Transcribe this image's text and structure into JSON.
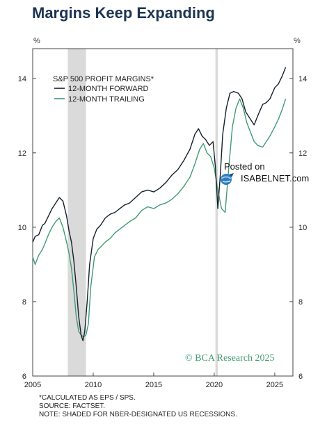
{
  "title": "Margins Keep Expanding",
  "colors": {
    "forward": "#14202c",
    "trailing": "#3f9b72",
    "recession": "#dadada",
    "axis": "#444444",
    "title": "#1c3550",
    "watermark": "#3f9b72"
  },
  "chart_data": {
    "type": "line",
    "title": "Margins Keep Expanding",
    "legend_title": "S&P 500 PROFIT MARGINS*",
    "legend_position": "top-left",
    "left_unit": "%",
    "right_unit": "%",
    "xlim": [
      2005,
      2026.5
    ],
    "ylim": [
      6,
      14.8
    ],
    "x_ticks": [
      2005,
      2010,
      2015,
      2020,
      2025
    ],
    "x_tick_labels": [
      "2005",
      "2010",
      "2015",
      "2020",
      "2025"
    ],
    "y_ticks": [
      6,
      8,
      10,
      12,
      14
    ],
    "y_tick_labels": [
      "6",
      "8",
      "10",
      "12",
      "14"
    ],
    "grid": false,
    "recession_shading": [
      [
        2007.9,
        2009.4
      ],
      [
        2020.1,
        2020.3
      ]
    ],
    "series": [
      {
        "name": "12-MONTH FORWARD",
        "x": [
          2005.0,
          2005.2,
          2005.5,
          2005.8,
          2006.0,
          2006.3,
          2006.6,
          2006.9,
          2007.2,
          2007.5,
          2007.8,
          2008.0,
          2008.2,
          2008.4,
          2008.6,
          2008.8,
          2009.0,
          2009.15,
          2009.3,
          2009.5,
          2009.7,
          2010.0,
          2010.3,
          2010.6,
          2011.0,
          2011.4,
          2011.8,
          2012.2,
          2012.6,
          2013.0,
          2013.5,
          2014.0,
          2014.5,
          2015.0,
          2015.5,
          2016.0,
          2016.5,
          2017.0,
          2017.5,
          2018.0,
          2018.4,
          2018.7,
          2019.0,
          2019.3,
          2019.6,
          2019.9,
          2020.1,
          2020.3,
          2020.5,
          2020.7,
          2021.0,
          2021.3,
          2021.6,
          2022.0,
          2022.3,
          2022.6,
          2023.0,
          2023.3,
          2023.6,
          2024.0,
          2024.3,
          2024.6,
          2025.0,
          2025.3,
          2025.6,
          2025.9
        ],
        "values": [
          9.6,
          9.75,
          9.8,
          10.05,
          10.1,
          10.3,
          10.5,
          10.65,
          10.8,
          10.7,
          10.3,
          9.9,
          9.6,
          9.1,
          8.4,
          7.6,
          7.1,
          6.95,
          7.2,
          8.0,
          9.0,
          9.7,
          9.95,
          10.05,
          10.25,
          10.35,
          10.4,
          10.5,
          10.6,
          10.65,
          10.8,
          10.95,
          11.0,
          10.95,
          11.05,
          11.2,
          11.4,
          11.55,
          11.8,
          12.1,
          12.5,
          12.65,
          12.45,
          12.35,
          12.2,
          12.3,
          11.6,
          10.5,
          11.4,
          12.5,
          13.2,
          13.6,
          13.65,
          13.6,
          13.45,
          13.1,
          12.9,
          12.75,
          13.0,
          13.3,
          13.35,
          13.45,
          13.75,
          13.85,
          14.05,
          14.3
        ]
      },
      {
        "name": "12-MONTH TRAILING",
        "x": [
          2005.0,
          2005.2,
          2005.5,
          2005.8,
          2006.0,
          2006.3,
          2006.6,
          2006.9,
          2007.2,
          2007.5,
          2007.8,
          2008.0,
          2008.2,
          2008.4,
          2008.6,
          2008.8,
          2009.0,
          2009.2,
          2009.4,
          2009.6,
          2009.8,
          2010.1,
          2010.4,
          2010.7,
          2011.0,
          2011.4,
          2011.8,
          2012.2,
          2012.6,
          2013.0,
          2013.5,
          2014.0,
          2014.5,
          2015.0,
          2015.5,
          2016.0,
          2016.5,
          2017.0,
          2017.5,
          2018.0,
          2018.4,
          2018.8,
          2019.1,
          2019.4,
          2019.7,
          2020.0,
          2020.3,
          2020.6,
          2020.9,
          2021.2,
          2021.5,
          2021.8,
          2022.1,
          2022.4,
          2022.7,
          2023.0,
          2023.3,
          2023.6,
          2024.0,
          2024.3,
          2024.6,
          2025.0,
          2025.3,
          2025.6,
          2025.9
        ],
        "values": [
          9.2,
          9.0,
          9.25,
          9.4,
          9.55,
          9.8,
          10.0,
          10.15,
          10.25,
          10.0,
          9.6,
          9.3,
          8.9,
          8.3,
          7.6,
          7.2,
          7.1,
          7.05,
          7.1,
          7.4,
          8.4,
          9.2,
          9.4,
          9.5,
          9.6,
          9.7,
          9.85,
          9.95,
          10.05,
          10.15,
          10.25,
          10.45,
          10.55,
          10.5,
          10.6,
          10.65,
          10.75,
          10.9,
          11.1,
          11.35,
          11.7,
          12.1,
          12.25,
          12.0,
          11.9,
          11.6,
          11.0,
          10.5,
          10.4,
          11.6,
          12.7,
          13.2,
          13.45,
          13.2,
          12.8,
          12.55,
          12.3,
          12.2,
          12.15,
          12.3,
          12.45,
          12.7,
          12.9,
          13.15,
          13.45
        ]
      }
    ],
    "annotation": "© BCA Research 2025"
  },
  "labels": {
    "legend_forward": "12-MONTH FORWARD",
    "legend_trailing": "12-MONTH TRAILING"
  },
  "notes": {
    "line1": "*CALCULATED AS EPS / SPS.",
    "line2": "SOURCE: FACTSET.",
    "line3": "NOTE: SHADED FOR NBER-DESIGNATED US RECESSIONS."
  },
  "watermark": {
    "posted_on": "Posted on",
    "site": "ISABELNET.com"
  }
}
